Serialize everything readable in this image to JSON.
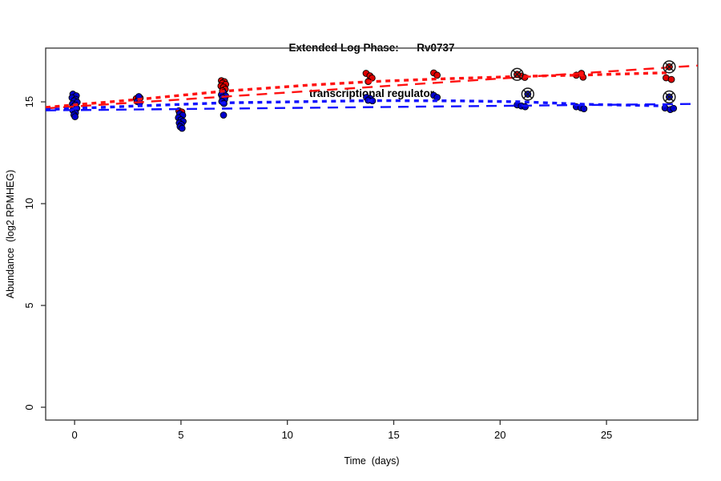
{
  "chart_data": {
    "type": "scatter",
    "title_line1": "Extended Log Phase:      Rv0737",
    "title_line2": "transcriptional regulator",
    "xlabel": "Time  (days)",
    "ylabel": "Abundance  (log2 RPMHEG)",
    "xlim": [
      -1.36,
      29.29
    ],
    "ylim": [
      -0.63,
      17.64
    ],
    "x_ticks": [
      0,
      5,
      10,
      15,
      20,
      25
    ],
    "y_ticks": [
      0,
      5,
      10,
      15
    ],
    "grid": false,
    "legend": "none",
    "colors": {
      "red_point": "#dd0000",
      "blue_point": "#0000cc",
      "red_line": "#ff1111",
      "blue_line": "#1111ff",
      "point_edge": "#000000",
      "axis": "#333333",
      "flag_ring": "#1a1a1a"
    },
    "flag_marker": "circle-with-x",
    "series": [
      {
        "name": "red",
        "color": "#dd0000",
        "points": [
          [
            2.9,
            15.16
          ],
          [
            3.0,
            15.1
          ],
          [
            3.08,
            15.19
          ],
          [
            4.9,
            14.56
          ],
          [
            5.04,
            14.5
          ],
          [
            4.99,
            14.28
          ],
          [
            6.9,
            16.04
          ],
          [
            7.04,
            15.99
          ],
          [
            6.95,
            15.92
          ],
          [
            7.1,
            15.86
          ],
          [
            6.88,
            15.78
          ],
          [
            7.0,
            15.72
          ],
          [
            7.08,
            15.62
          ],
          [
            6.95,
            15.54
          ],
          [
            13.7,
            16.4
          ],
          [
            13.88,
            16.28
          ],
          [
            13.98,
            16.17
          ],
          [
            13.8,
            16.0
          ],
          [
            16.88,
            16.42
          ],
          [
            17.04,
            16.31
          ],
          [
            20.8,
            16.35,
            1
          ],
          [
            21.0,
            16.27
          ],
          [
            21.16,
            16.2
          ],
          [
            23.58,
            16.31
          ],
          [
            23.82,
            16.4
          ],
          [
            23.9,
            16.21
          ],
          [
            27.95,
            16.72,
            1
          ],
          [
            27.8,
            16.18
          ],
          [
            28.05,
            16.1
          ]
        ]
      },
      {
        "name": "blue",
        "color": "#0000cc",
        "points": [
          [
            -0.08,
            15.38
          ],
          [
            0.08,
            15.3
          ],
          [
            -0.12,
            15.2
          ],
          [
            0.05,
            15.12
          ],
          [
            -0.02,
            15.05
          ],
          [
            0.12,
            14.98
          ],
          [
            -0.1,
            14.9
          ],
          [
            0.03,
            14.84
          ],
          [
            -0.05,
            14.76
          ],
          [
            0.1,
            14.68
          ],
          [
            -0.08,
            14.58
          ],
          [
            0.04,
            14.46
          ],
          [
            -0.03,
            14.36
          ],
          [
            0.02,
            14.27
          ],
          [
            3.02,
            15.26
          ],
          [
            2.94,
            15.02
          ],
          [
            3.06,
            14.96
          ],
          [
            4.94,
            14.42
          ],
          [
            5.08,
            14.34
          ],
          [
            4.88,
            14.22
          ],
          [
            5.0,
            14.12
          ],
          [
            5.1,
            14.04
          ],
          [
            4.92,
            13.96
          ],
          [
            5.02,
            13.88
          ],
          [
            4.96,
            13.78
          ],
          [
            5.05,
            13.7
          ],
          [
            7.0,
            15.45
          ],
          [
            6.9,
            15.35
          ],
          [
            7.1,
            15.29
          ],
          [
            6.95,
            15.21
          ],
          [
            7.05,
            15.12
          ],
          [
            6.92,
            15.02
          ],
          [
            7.02,
            14.92
          ],
          [
            7.0,
            14.35
          ],
          [
            13.72,
            15.22
          ],
          [
            13.9,
            15.16
          ],
          [
            13.8,
            15.08
          ],
          [
            14.0,
            15.05
          ],
          [
            16.88,
            15.32
          ],
          [
            17.04,
            15.22
          ],
          [
            21.3,
            15.38,
            1
          ],
          [
            20.8,
            14.85
          ],
          [
            21.0,
            14.8
          ],
          [
            21.18,
            14.76
          ],
          [
            23.58,
            14.76
          ],
          [
            23.8,
            14.71
          ],
          [
            23.94,
            14.66
          ],
          [
            27.95,
            15.24,
            1
          ],
          [
            27.75,
            14.7
          ],
          [
            28.0,
            14.62
          ],
          [
            28.15,
            14.68
          ]
        ]
      }
    ],
    "fit_lines": [
      {
        "name": "red-dotted-fit",
        "color": "#ff1111",
        "dash": "6 5.5",
        "width": 3.4,
        "points": [
          [
            -1.36,
            14.73
          ],
          [
            3,
            15.12
          ],
          [
            7,
            15.52
          ],
          [
            11,
            15.82
          ],
          [
            14,
            16.0
          ],
          [
            17,
            16.12
          ],
          [
            21,
            16.25
          ],
          [
            24,
            16.32
          ],
          [
            27.9,
            16.43
          ]
        ]
      },
      {
        "name": "red-dashed-fit",
        "color": "#ff1111",
        "dash": "13 9",
        "width": 2.4,
        "points": [
          [
            -1.36,
            14.68
          ],
          [
            29.29,
            16.78
          ]
        ]
      },
      {
        "name": "blue-dotted-fit",
        "color": "#1111ff",
        "dash": "6 5.5",
        "width": 3.4,
        "points": [
          [
            -1.36,
            14.62
          ],
          [
            3,
            14.8
          ],
          [
            7,
            14.95
          ],
          [
            14,
            15.06
          ],
          [
            18,
            15.05
          ],
          [
            21,
            15.0
          ],
          [
            24,
            14.88
          ],
          [
            27.8,
            14.8
          ]
        ]
      },
      {
        "name": "blue-dashed-fit",
        "color": "#1111ff",
        "dash": "13 9",
        "width": 2.4,
        "points": [
          [
            -1.36,
            14.58
          ],
          [
            29.29,
            14.9
          ]
        ]
      }
    ]
  }
}
